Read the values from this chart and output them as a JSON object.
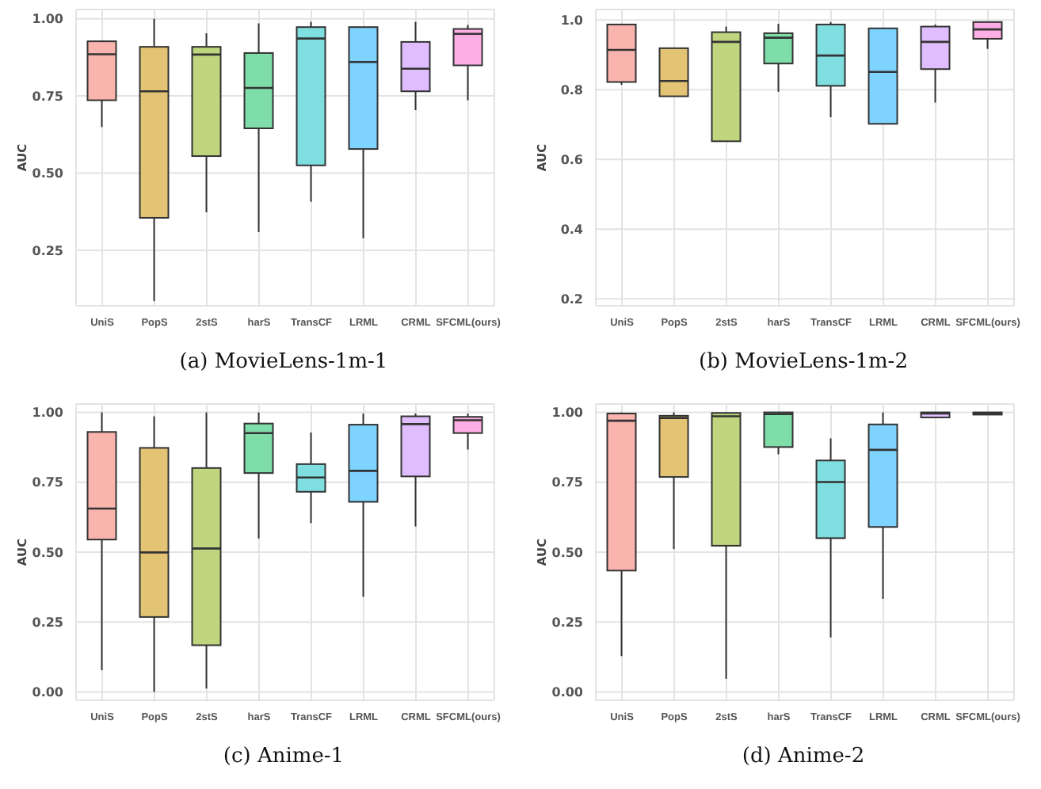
{
  "chart_data": [
    {
      "type": "box",
      "title": "(a) MovieLens-1m-1",
      "ylabel": "AUC",
      "categories": [
        "UniS",
        "PopS",
        "2stS",
        "harS",
        "TransCF",
        "LRML",
        "CRML",
        "SFCML(ours)"
      ],
      "colors": [
        "#fab4ae",
        "#e2c474",
        "#bfd67f",
        "#7fdda9",
        "#7fdee0",
        "#7fd3ff",
        "#e0bdfe",
        "#fdaee4"
      ],
      "grid": true,
      "ylim": [
        0.07,
        1.03
      ],
      "yticks": [
        {
          "value": 0.25,
          "label": "0.25"
        },
        {
          "value": 0.5,
          "label": "0.50"
        },
        {
          "value": 0.75,
          "label": "0.75"
        },
        {
          "value": 1,
          "label": "1.00"
        }
      ],
      "boxes": [
        {
          "low": 0.649,
          "q1": 0.736,
          "median": 0.885,
          "q3": 0.927,
          "high": 0.93
        },
        {
          "low": 0.085,
          "q1": 0.355,
          "median": 0.765,
          "q3": 0.909,
          "high": 1.0
        },
        {
          "low": 0.373,
          "q1": 0.555,
          "median": 0.884,
          "q3": 0.909,
          "high": 0.953
        },
        {
          "low": 0.309,
          "q1": 0.645,
          "median": 0.776,
          "q3": 0.889,
          "high": 0.985
        },
        {
          "low": 0.407,
          "q1": 0.525,
          "median": 0.936,
          "q3": 0.973,
          "high": 0.99
        },
        {
          "low": 0.289,
          "q1": 0.578,
          "median": 0.86,
          "q3": 0.973,
          "high": 0.973
        },
        {
          "low": 0.704,
          "q1": 0.765,
          "median": 0.838,
          "q3": 0.925,
          "high": 0.99
        },
        {
          "low": 0.736,
          "q1": 0.849,
          "median": 0.951,
          "q3": 0.967,
          "high": 0.98
        }
      ]
    },
    {
      "type": "box",
      "title": "(b) MovieLens-1m-2",
      "ylabel": "AUC",
      "categories": [
        "UniS",
        "PopS",
        "2stS",
        "harS",
        "TransCF",
        "LRML",
        "CRML",
        "SFCML(ours)"
      ],
      "colors": [
        "#fab4ae",
        "#e2c474",
        "#bfd67f",
        "#7fdda9",
        "#7fdee0",
        "#7fd3ff",
        "#e0bdfe",
        "#fdaee4"
      ],
      "grid": true,
      "ylim": [
        0.18,
        1.03
      ],
      "yticks": [
        {
          "value": 0.2,
          "label": "0.2"
        },
        {
          "value": 0.4,
          "label": "0.4"
        },
        {
          "value": 0.6,
          "label": "0.6"
        },
        {
          "value": 0.8,
          "label": "0.8"
        },
        {
          "value": 1,
          "label": "1.0"
        }
      ],
      "boxes": [
        {
          "low": 0.814,
          "q1": 0.822,
          "median": 0.914,
          "q3": 0.987,
          "high": 0.987
        },
        {
          "low": 0.781,
          "q1": 0.781,
          "median": 0.825,
          "q3": 0.919,
          "high": 0.919
        },
        {
          "low": 0.652,
          "q1": 0.652,
          "median": 0.937,
          "q3": 0.965,
          "high": 0.981
        },
        {
          "low": 0.794,
          "q1": 0.875,
          "median": 0.949,
          "q3": 0.962,
          "high": 0.989
        },
        {
          "low": 0.721,
          "q1": 0.811,
          "median": 0.898,
          "q3": 0.987,
          "high": 0.994
        },
        {
          "low": 0.702,
          "q1": 0.702,
          "median": 0.851,
          "q3": 0.976,
          "high": 0.976
        },
        {
          "low": 0.763,
          "q1": 0.859,
          "median": 0.937,
          "q3": 0.981,
          "high": 0.987
        },
        {
          "low": 0.917,
          "q1": 0.946,
          "median": 0.973,
          "q3": 0.994,
          "high": 0.994
        }
      ]
    },
    {
      "type": "box",
      "title": "(c) Anime-1",
      "ylabel": "AUC",
      "categories": [
        "UniS",
        "PopS",
        "2stS",
        "harS",
        "TransCF",
        "LRML",
        "CRML",
        "SFCML(ours)"
      ],
      "colors": [
        "#fab4ae",
        "#e2c474",
        "#bfd67f",
        "#7fdda9",
        "#7fdee0",
        "#7fd3ff",
        "#e0bdfe",
        "#fdaee4"
      ],
      "grid": true,
      "ylim": [
        -0.03,
        1.03
      ],
      "yticks": [
        {
          "value": 0,
          "label": "0.00"
        },
        {
          "value": 0.25,
          "label": "0.25"
        },
        {
          "value": 0.5,
          "label": "0.50"
        },
        {
          "value": 0.75,
          "label": "0.75"
        },
        {
          "value": 1,
          "label": "1.00"
        }
      ],
      "boxes": [
        {
          "low": 0.078,
          "q1": 0.545,
          "median": 0.656,
          "q3": 0.93,
          "high": 1.0
        },
        {
          "low": 0.0,
          "q1": 0.268,
          "median": 0.499,
          "q3": 0.873,
          "high": 0.986
        },
        {
          "low": 0.012,
          "q1": 0.167,
          "median": 0.513,
          "q3": 0.801,
          "high": 1.0
        },
        {
          "low": 0.549,
          "q1": 0.783,
          "median": 0.926,
          "q3": 0.96,
          "high": 1.0
        },
        {
          "low": 0.604,
          "q1": 0.716,
          "median": 0.767,
          "q3": 0.815,
          "high": 0.928
        },
        {
          "low": 0.34,
          "q1": 0.68,
          "median": 0.791,
          "q3": 0.956,
          "high": 0.996
        },
        {
          "low": 0.592,
          "q1": 0.771,
          "median": 0.958,
          "q3": 0.986,
          "high": 0.996
        },
        {
          "low": 0.867,
          "q1": 0.926,
          "median": 0.972,
          "q3": 0.984,
          "high": 0.996
        }
      ]
    },
    {
      "type": "box",
      "title": "(d) Anime-2",
      "ylabel": "AUC",
      "categories": [
        "UniS",
        "PopS",
        "2stS",
        "harS",
        "TransCF",
        "LRML",
        "CRML",
        "SFCML(ours)"
      ],
      "colors": [
        "#fab4ae",
        "#e2c474",
        "#bfd67f",
        "#7fdda9",
        "#7fdee0",
        "#7fd3ff",
        "#e0bdfe",
        "#fdaee4"
      ],
      "grid": true,
      "ylim": [
        -0.03,
        1.03
      ],
      "yticks": [
        {
          "value": 0,
          "label": "0.00"
        },
        {
          "value": 0.25,
          "label": "0.25"
        },
        {
          "value": 0.5,
          "label": "0.50"
        },
        {
          "value": 0.75,
          "label": "0.75"
        },
        {
          "value": 1,
          "label": "1.00"
        }
      ],
      "boxes": [
        {
          "low": 0.128,
          "q1": 0.434,
          "median": 0.97,
          "q3": 0.996,
          "high": 1.0
        },
        {
          "low": 0.511,
          "q1": 0.769,
          "median": 0.98,
          "q3": 0.988,
          "high": 1.0
        },
        {
          "low": 0.047,
          "q1": 0.523,
          "median": 0.986,
          "q3": 0.998,
          "high": 1.0
        },
        {
          "low": 0.85,
          "q1": 0.876,
          "median": 0.994,
          "q3": 1.0,
          "high": 1.0
        },
        {
          "low": 0.195,
          "q1": 0.55,
          "median": 0.751,
          "q3": 0.828,
          "high": 0.907
        },
        {
          "low": 0.333,
          "q1": 0.59,
          "median": 0.866,
          "q3": 0.957,
          "high": 1.0
        },
        {
          "low": 0.982,
          "q1": 0.982,
          "median": 0.996,
          "q3": 1.0,
          "high": 1.0
        },
        {
          "low": 0.992,
          "q1": 0.992,
          "median": 0.996,
          "q3": 1.0,
          "high": 1.0
        }
      ]
    }
  ]
}
